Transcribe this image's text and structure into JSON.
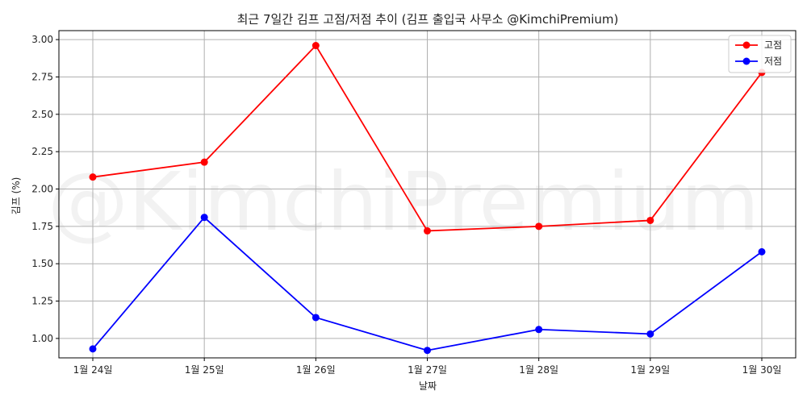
{
  "chart_data": {
    "type": "line",
    "title": "최근 7일간 김프 고점/저점 추이 (김프 출입국 사무소 @KimchiPremium)",
    "xlabel": "날짜",
    "ylabel": "김프 (%)",
    "watermark": "@KimchiPremium",
    "categories": [
      "1월 24일",
      "1월 25일",
      "1월 26일",
      "1월 27일",
      "1월 28일",
      "1월 29일",
      "1월 30일"
    ],
    "ylim": [
      0.87,
      3.06
    ],
    "yticks": [
      1.0,
      1.25,
      1.5,
      1.75,
      2.0,
      2.25,
      2.5,
      2.75,
      3.0
    ],
    "ytick_labels": [
      "1.00",
      "1.25",
      "1.50",
      "1.75",
      "2.00",
      "2.25",
      "2.50",
      "2.75",
      "3.00"
    ],
    "grid": true,
    "legend_position": "top-right",
    "series": [
      {
        "name": "고점",
        "color": "#ff0000",
        "values": [
          2.08,
          2.18,
          2.96,
          1.72,
          1.75,
          1.79,
          2.78
        ]
      },
      {
        "name": "저점",
        "color": "#0000ff",
        "values": [
          0.93,
          1.81,
          1.14,
          0.92,
          1.06,
          1.03,
          1.58
        ]
      }
    ]
  }
}
